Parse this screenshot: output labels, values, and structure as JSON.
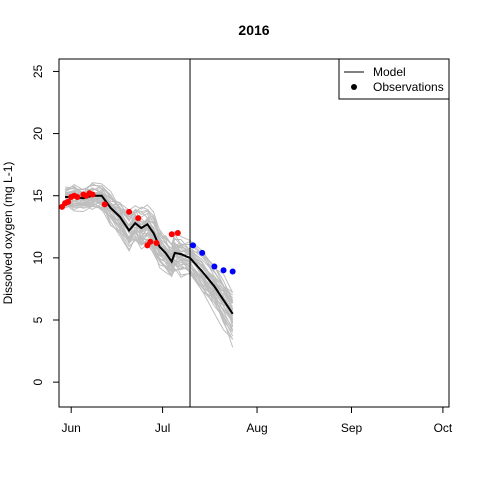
{
  "chart_data": {
    "type": "line",
    "title": "2016",
    "xlabel": "",
    "ylabel": "Dissolved oxygen (mg L-1)",
    "xlim": [
      "2016-05-28",
      "2016-10-03"
    ],
    "ylim": [
      -2,
      26
    ],
    "x_ticks": [
      {
        "date": "2016-06-01",
        "label": "Jun"
      },
      {
        "date": "2016-07-01",
        "label": "Jul"
      },
      {
        "date": "2016-08-01",
        "label": "Aug"
      },
      {
        "date": "2016-09-01",
        "label": "Sep"
      },
      {
        "date": "2016-10-01",
        "label": "Oct"
      }
    ],
    "y_ticks": [
      0,
      5,
      10,
      15,
      20,
      25
    ],
    "grid": false,
    "legend": {
      "position": "top-right",
      "entries": [
        {
          "label": "Model",
          "symbol": "line"
        },
        {
          "label": "Observations",
          "symbol": "point"
        }
      ]
    },
    "forecast_start": "2016-07-10",
    "colors": {
      "model": "#000000",
      "ensemble": "#bebebe",
      "obs_before": "#ff0000",
      "obs_after": "#0000ff"
    },
    "model_series": {
      "name": "Model",
      "x": [
        "2016-05-30",
        "2016-06-02",
        "2016-06-05",
        "2016-06-08",
        "2016-06-11",
        "2016-06-14",
        "2016-06-17",
        "2016-06-20",
        "2016-06-22",
        "2016-06-24",
        "2016-06-26",
        "2016-06-28",
        "2016-06-30",
        "2016-07-02",
        "2016-07-04",
        "2016-07-05",
        "2016-07-07",
        "2016-07-10",
        "2016-07-14",
        "2016-07-18",
        "2016-07-21",
        "2016-07-24"
      ],
      "y": [
        14.9,
        14.9,
        14.8,
        15.0,
        15.0,
        14.0,
        13.3,
        12.2,
        12.8,
        12.4,
        12.7,
        12.0,
        10.9,
        10.4,
        9.7,
        10.4,
        10.3,
        10.0,
        8.9,
        7.7,
        6.6,
        5.5
      ]
    },
    "ensemble": {
      "members": 40,
      "spread": [
        0.9,
        1.1,
        1.0,
        1.1,
        1.2,
        1.4,
        1.5,
        1.7,
        1.6,
        1.7,
        1.6,
        1.7,
        1.6,
        1.6,
        1.5,
        1.6,
        1.6,
        1.5,
        1.7,
        2.0,
        2.2,
        2.4
      ]
    },
    "observations": [
      {
        "date": "2016-05-29",
        "value": 14.1,
        "period": "before"
      },
      {
        "date": "2016-05-30",
        "value": 14.4,
        "period": "before"
      },
      {
        "date": "2016-05-31",
        "value": 14.5,
        "period": "before"
      },
      {
        "date": "2016-06-01",
        "value": 14.9,
        "period": "before"
      },
      {
        "date": "2016-06-02",
        "value": 15.0,
        "period": "before"
      },
      {
        "date": "2016-06-03",
        "value": 14.9,
        "period": "before"
      },
      {
        "date": "2016-06-05",
        "value": 15.1,
        "period": "before"
      },
      {
        "date": "2016-06-06",
        "value": 15.0,
        "period": "before"
      },
      {
        "date": "2016-06-07",
        "value": 15.2,
        "period": "before"
      },
      {
        "date": "2016-06-08",
        "value": 15.1,
        "period": "before"
      },
      {
        "date": "2016-06-12",
        "value": 14.3,
        "period": "before"
      },
      {
        "date": "2016-06-20",
        "value": 13.7,
        "period": "before"
      },
      {
        "date": "2016-06-23",
        "value": 13.2,
        "period": "before"
      },
      {
        "date": "2016-06-26",
        "value": 11.0,
        "period": "before"
      },
      {
        "date": "2016-06-27",
        "value": 11.3,
        "period": "before"
      },
      {
        "date": "2016-06-29",
        "value": 11.2,
        "period": "before"
      },
      {
        "date": "2016-07-04",
        "value": 11.9,
        "period": "before"
      },
      {
        "date": "2016-07-06",
        "value": 12.0,
        "period": "before"
      },
      {
        "date": "2016-07-11",
        "value": 11.0,
        "period": "after"
      },
      {
        "date": "2016-07-14",
        "value": 10.4,
        "period": "after"
      },
      {
        "date": "2016-07-18",
        "value": 9.3,
        "period": "after"
      },
      {
        "date": "2016-07-21",
        "value": 9.0,
        "period": "after"
      },
      {
        "date": "2016-07-24",
        "value": 8.9,
        "period": "after"
      }
    ]
  }
}
